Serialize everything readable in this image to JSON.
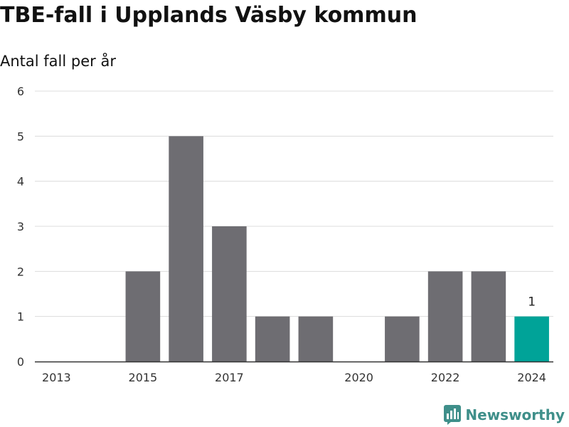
{
  "title": "TBE-fall i Upplands Väsby kommun",
  "subtitle": "Antal fall per år",
  "brand": {
    "name": "Newsworthy",
    "icon": "newsworthy-logo-icon",
    "color": "#3f8f8a"
  },
  "colors": {
    "bar": "#6e6d72",
    "highlight": "#00a398",
    "grid": "#dcdcdc",
    "axis": "#333333"
  },
  "chart_data": {
    "type": "bar",
    "categories": [
      "2013",
      "2014",
      "2015",
      "2016",
      "2017",
      "2018",
      "2019",
      "2020",
      "2021",
      "2022",
      "2023",
      "2024"
    ],
    "x_tick_labels": [
      "2013",
      "2015",
      "2017",
      "2020",
      "2022",
      "2024"
    ],
    "values": [
      0,
      0,
      2,
      5,
      3,
      1,
      1,
      0,
      1,
      2,
      2,
      1
    ],
    "highlight_category": "2024",
    "data_labels": [
      {
        "category": "2024",
        "text": "1"
      }
    ],
    "title": "TBE-fall i Upplands Väsby kommun",
    "subtitle": "Antal fall per år",
    "xlabel": "",
    "ylabel": "",
    "ylim": [
      0,
      6
    ],
    "yticks": [
      0,
      1,
      2,
      3,
      4,
      5,
      6
    ],
    "grid": true,
    "legend": "none"
  }
}
